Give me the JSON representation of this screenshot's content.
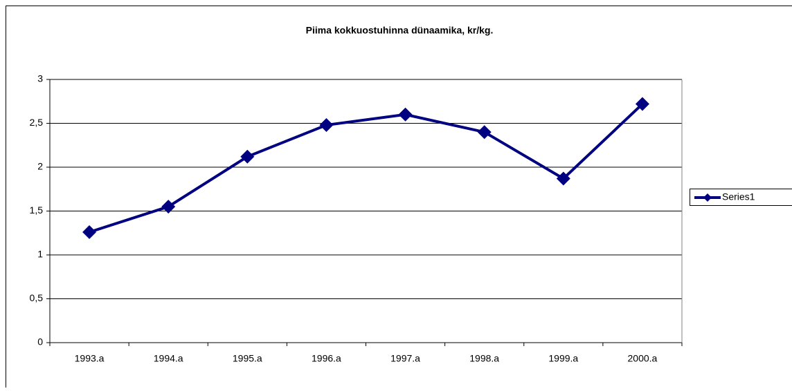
{
  "chart_data": {
    "type": "line",
    "title": "Piima kokkuostuhinna dünaamika, kr/kg.",
    "categories": [
      "1993.a",
      "1994.a",
      "1995.a",
      "1996.a",
      "1997.a",
      "1998.a",
      "1999.a",
      "2000.a"
    ],
    "series": [
      {
        "name": "Series1",
        "color": "#000080",
        "values": [
          1.26,
          1.55,
          2.12,
          2.48,
          2.6,
          2.4,
          1.87,
          2.72
        ]
      }
    ],
    "ylim": [
      0,
      3
    ],
    "yticks": [
      0,
      {
        "value": 0.5,
        "label": "0,5"
      },
      1,
      {
        "value": 1.5,
        "label": "1,5"
      },
      2,
      {
        "value": 2.5,
        "label": "2,5"
      },
      3
    ],
    "grid": true,
    "legend": "right"
  }
}
